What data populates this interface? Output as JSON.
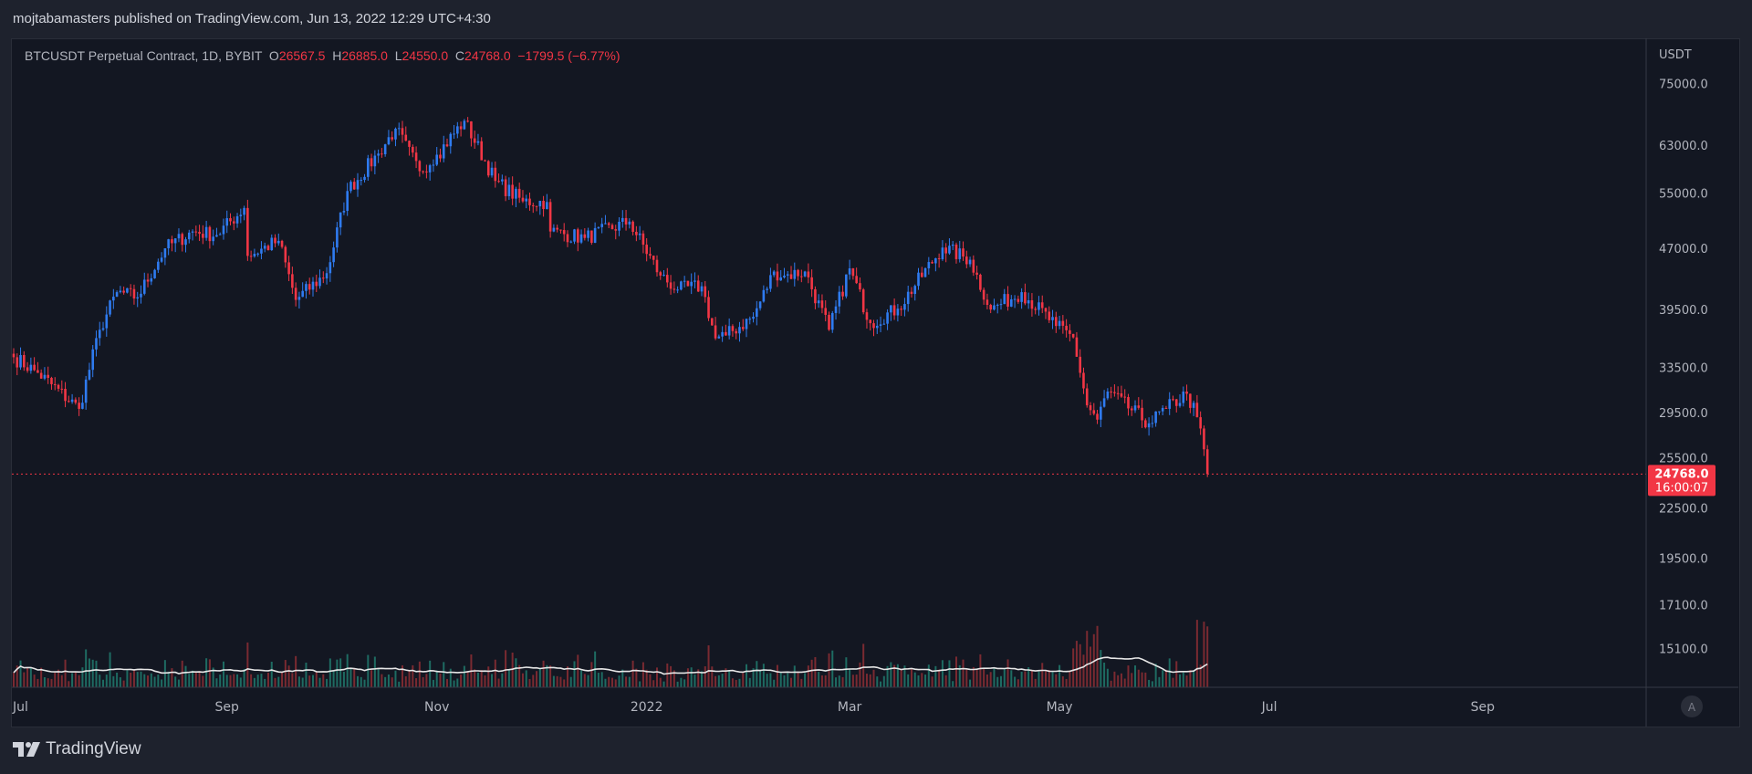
{
  "header": {
    "published": "mojtabamasters published on TradingView.com, Jun 13, 2022 12:29 UTC+4:30"
  },
  "legend": {
    "symbol": "BTCUSDT Perpetual Contract, 1D, BYBIT",
    "o_label": "O",
    "open": "26567.5",
    "h_label": "H",
    "high": "26885.0",
    "l_label": "L",
    "low": "24550.0",
    "c_label": "C",
    "close": "24768.0",
    "change": "−1799.5 (−6.77%)"
  },
  "price_axis": {
    "unit": "USDT",
    "ticks": [
      "75000.0",
      "63000.0",
      "55000.0",
      "47000.0",
      "39500.0",
      "33500.0",
      "29500.0",
      "25500.0",
      "22500.0",
      "19500.0",
      "17100.0",
      "15100.0"
    ],
    "scale_button": "A"
  },
  "last_price": {
    "price": "24768.0",
    "countdown": "16:00:07"
  },
  "time_axis": {
    "labels": [
      "Jul",
      "Sep",
      "Nov",
      "2022",
      "Mar",
      "May",
      "Jul",
      "Sep"
    ]
  },
  "footer": {
    "brand": "TradingView"
  },
  "colors": {
    "background": "#131722",
    "up": "#2f7bf0",
    "down": "#f23645",
    "volume_up": "#1e6b62",
    "volume_down": "#7a2a31",
    "volume_ma": "#e6e6e6"
  },
  "chart_data": {
    "type": "candlestick",
    "symbol": "BTCUSDT",
    "interval": "1D",
    "y_scale": "log",
    "ylim": [
      13500,
      80000
    ],
    "x_range": [
      "2021-07-01",
      "2022-09-20"
    ],
    "grid": false,
    "close_waypoints": [
      [
        "2021-07-01",
        34500
      ],
      [
        "2021-07-08",
        33000
      ],
      [
        "2021-07-20",
        29800
      ],
      [
        "2021-07-26",
        37300
      ],
      [
        "2021-07-31",
        41500
      ],
      [
        "2021-08-06",
        40900
      ],
      [
        "2021-08-14",
        47000
      ],
      [
        "2021-08-22",
        49300
      ],
      [
        "2021-08-29",
        48800
      ],
      [
        "2021-09-06",
        52700
      ],
      [
        "2021-09-07",
        46000
      ],
      [
        "2021-09-16",
        48000
      ],
      [
        "2021-09-21",
        40600
      ],
      [
        "2021-09-30",
        43800
      ],
      [
        "2021-10-06",
        55300
      ],
      [
        "2021-10-15",
        61500
      ],
      [
        "2021-10-20",
        66000
      ],
      [
        "2021-10-27",
        58500
      ],
      [
        "2021-11-01",
        61300
      ],
      [
        "2021-11-09",
        67500
      ],
      [
        "2021-11-18",
        56900
      ],
      [
        "2021-11-26",
        53700
      ],
      [
        "2021-12-03",
        53600
      ],
      [
        "2021-12-04",
        49300
      ],
      [
        "2021-12-14",
        48400
      ],
      [
        "2021-12-27",
        50700
      ],
      [
        "2022-01-05",
        43500
      ],
      [
        "2022-01-10",
        41800
      ],
      [
        "2022-01-17",
        42200
      ],
      [
        "2022-01-21",
        36400
      ],
      [
        "2022-01-24",
        36700
      ],
      [
        "2022-02-01",
        38700
      ],
      [
        "2022-02-07",
        44000
      ],
      [
        "2022-02-10",
        43500
      ],
      [
        "2022-02-16",
        44000
      ],
      [
        "2022-02-23",
        37300
      ],
      [
        "2022-03-01",
        44400
      ],
      [
        "2022-03-07",
        38000
      ],
      [
        "2022-03-15",
        39600
      ],
      [
        "2022-03-28",
        47100
      ],
      [
        "2022-04-05",
        45500
      ],
      [
        "2022-04-11",
        39500
      ],
      [
        "2022-04-20",
        41500
      ],
      [
        "2022-04-30",
        37700
      ],
      [
        "2022-05-05",
        36500
      ],
      [
        "2022-05-09",
        30100
      ],
      [
        "2022-05-12",
        28900
      ],
      [
        "2022-05-15",
        31300
      ],
      [
        "2022-05-27",
        28600
      ],
      [
        "2022-06-01",
        29800
      ],
      [
        "2022-06-07",
        31100
      ],
      [
        "2022-06-10",
        29100
      ],
      [
        "2022-06-12",
        26567.5
      ],
      [
        "2022-06-13",
        24768
      ]
    ],
    "last_candle": {
      "date": "2022-06-13",
      "open": 26567.5,
      "high": 26885.0,
      "low": 24550.0,
      "close": 24768.0
    },
    "volume_ma": true
  }
}
